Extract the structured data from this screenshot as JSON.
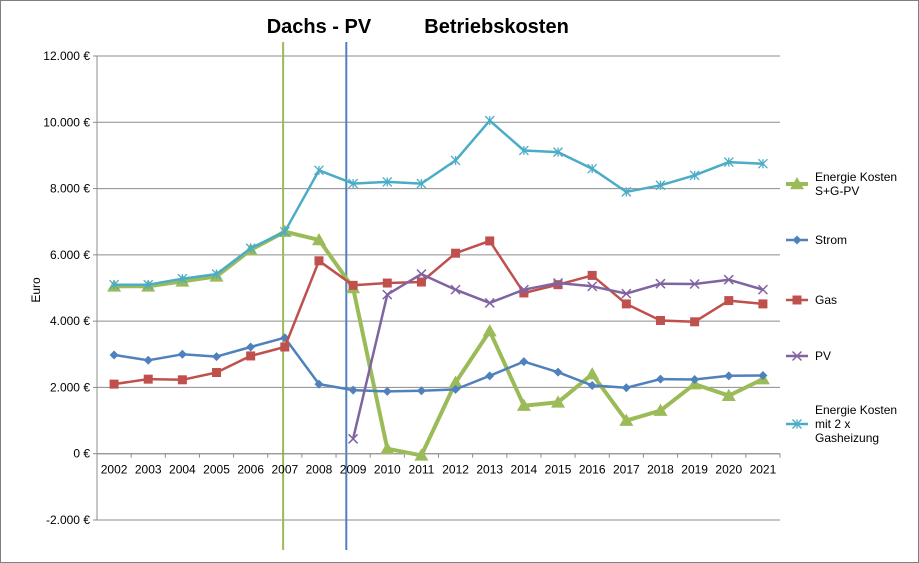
{
  "chart_data": {
    "type": "line",
    "title": "",
    "annotations": [
      {
        "text": "Dachs -  PV",
        "x": 2008
      },
      {
        "text": "Betriebskosten",
        "x": 2013.2
      }
    ],
    "xlabel": "",
    "ylabel": "Euro",
    "x": [
      2002,
      2003,
      2004,
      2005,
      2006,
      2007,
      2008,
      2009,
      2010,
      2011,
      2012,
      2013,
      2014,
      2015,
      2016,
      2017,
      2018,
      2019,
      2020,
      2021
    ],
    "x_tick_labels": [
      "2002",
      "2003",
      "2004",
      "2005",
      "2006",
      "2007",
      "2008",
      "2009",
      "2010",
      "2011",
      "2012",
      "2013",
      "2014",
      "2015",
      "2016",
      "2017",
      "2018",
      "2019",
      "2020",
      "2021"
    ],
    "ylim": [
      -2000,
      12000
    ],
    "y_ticks": [
      -2000,
      0,
      2000,
      4000,
      6000,
      8000,
      10000,
      12000
    ],
    "y_tick_labels": [
      "-2.000 €",
      "0 €",
      "2.000 €",
      "4.000 €",
      "6.000 €",
      "8.000 €",
      "10.000 €",
      "12.000 €"
    ],
    "grid": "horizontal",
    "legend_position": "right",
    "vertical_markers": [
      {
        "x": 2006.95,
        "color": "#9bbb59"
      },
      {
        "x": 2008.8,
        "color": "#4f81bd"
      }
    ],
    "series": [
      {
        "name": "Energie Kosten S+G-PV",
        "legend_lines": [
          "Energie Kosten",
          "S+G-PV"
        ],
        "color": "#9bbb59",
        "marker": "triangle",
        "width": 4,
        "values": [
          5050,
          5050,
          5200,
          5350,
          6150,
          6700,
          6450,
          5000,
          150,
          -50,
          2150,
          3700,
          1450,
          1550,
          2400,
          1000,
          1300,
          2100,
          1750,
          2250
        ]
      },
      {
        "name": "Strom",
        "legend_lines": [
          "Strom"
        ],
        "color": "#4f81bd",
        "marker": "diamond",
        "width": 2.5,
        "values": [
          2980,
          2820,
          3000,
          2930,
          3220,
          3500,
          2100,
          1920,
          1880,
          1900,
          1940,
          2350,
          2780,
          2460,
          2060,
          1990,
          2250,
          2240,
          2350,
          2360
        ]
      },
      {
        "name": "Gas",
        "legend_lines": [
          "Gas"
        ],
        "color": "#c0504d",
        "marker": "square",
        "width": 2.5,
        "values": [
          2100,
          2250,
          2230,
          2450,
          2950,
          3220,
          5820,
          5080,
          5150,
          5180,
          6050,
          6420,
          4850,
          5100,
          5380,
          4520,
          4020,
          3980,
          4620,
          4520
        ]
      },
      {
        "name": "PV",
        "legend_lines": [
          "PV"
        ],
        "color": "#8064a2",
        "marker": "x",
        "width": 2.5,
        "values": [
          null,
          null,
          null,
          null,
          null,
          null,
          null,
          450,
          4800,
          5420,
          4950,
          4550,
          4950,
          5150,
          5050,
          4830,
          5130,
          5120,
          5250,
          4950
        ]
      },
      {
        "name": "Energie Kosten mit 2 x Gasheizung",
        "legend_lines": [
          "Energie Kosten",
          "mit 2 x",
          "Gasheizung"
        ],
        "color": "#4bacc6",
        "marker": "star",
        "width": 2.5,
        "values": [
          5100,
          5100,
          5280,
          5420,
          6200,
          6700,
          8550,
          8150,
          8200,
          8150,
          8850,
          10050,
          9150,
          9100,
          8600,
          7900,
          8100,
          8400,
          8800,
          8750
        ]
      }
    ]
  }
}
